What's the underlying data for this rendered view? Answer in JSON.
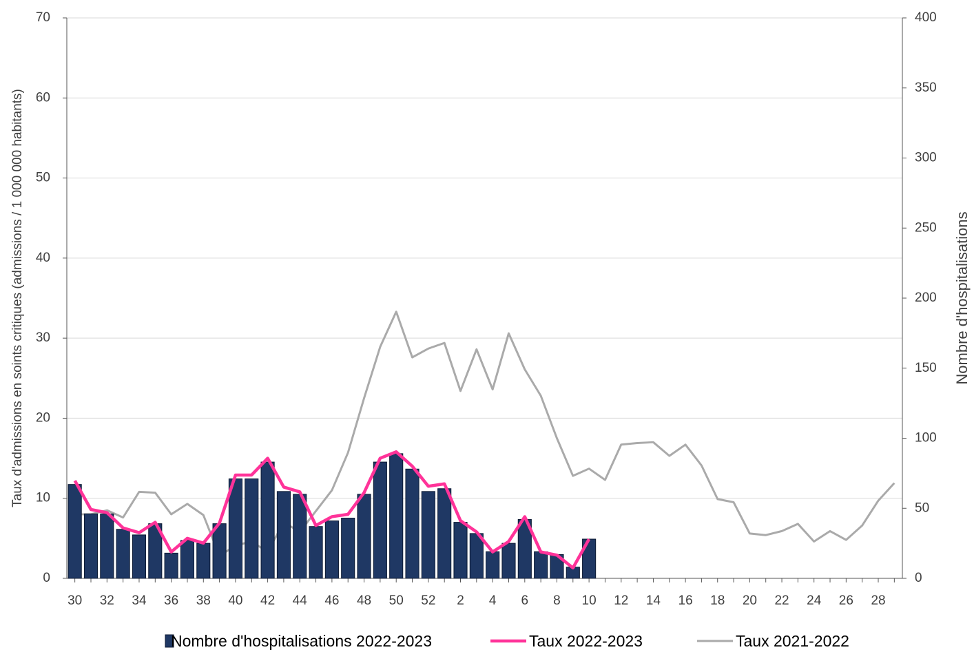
{
  "chart_data": {
    "type": "bar",
    "y_label": "Taux d'admissions  en soints  critiques  (admissions  / 1 000 000 habitants)",
    "y2_label": "Nombre d'hospitalisations",
    "categories": [
      "30",
      null,
      "32",
      null,
      "34",
      null,
      "36",
      null,
      "38",
      null,
      "40",
      null,
      "42",
      null,
      "44",
      null,
      "46",
      null,
      "48",
      null,
      "50",
      null,
      "52",
      null,
      "2",
      null,
      "4",
      null,
      "6",
      null,
      "8",
      null,
      "10",
      null,
      "12",
      null,
      "14",
      null,
      "16",
      null,
      "18",
      null,
      "20",
      null,
      "22",
      null,
      "24",
      null,
      "26",
      null,
      "28",
      null
    ],
    "ylim": [
      0,
      70
    ],
    "yticks": [
      0,
      10,
      20,
      30,
      40,
      50,
      60,
      70
    ],
    "y2lim": [
      0,
      400
    ],
    "y2ticks": [
      0,
      50,
      100,
      150,
      200,
      250,
      300,
      350,
      400
    ],
    "grid": true,
    "legend": "bottom",
    "series": [
      {
        "name": "Nombre d'hospitalisations 2022-2023",
        "type": "bar",
        "axis": "y2",
        "color": "#1f3864",
        "values": [
          67,
          46,
          46,
          35,
          31,
          39,
          18,
          27,
          25,
          39,
          71,
          71,
          83,
          62,
          60,
          37,
          41,
          43,
          60,
          83,
          89,
          78,
          62,
          64,
          40,
          32,
          19,
          25,
          42,
          19,
          17,
          8,
          28,
          null,
          null,
          null,
          null,
          null,
          null,
          null,
          null,
          null,
          null,
          null,
          null,
          null,
          null,
          null,
          null,
          null,
          null,
          null
        ]
      },
      {
        "name": "Taux 2022-2023",
        "type": "line",
        "color": "#ff3399",
        "values": [
          12.2,
          8.6,
          8.2,
          6.3,
          5.7,
          7.0,
          3.3,
          5.0,
          4.4,
          6.9,
          12.9,
          12.9,
          15.0,
          11.4,
          10.8,
          6.6,
          7.7,
          8.0,
          10.7,
          15.0,
          15.8,
          14.0,
          11.5,
          11.8,
          7.2,
          5.8,
          3.3,
          4.6,
          7.7,
          3.3,
          2.9,
          1.3,
          4.9,
          null,
          null,
          null,
          null,
          null,
          null,
          null,
          null,
          null,
          null,
          null,
          null,
          null,
          null,
          null,
          null,
          null,
          null,
          null
        ]
      },
      {
        "name": "Taux 2021-2022",
        "type": "line",
        "color": "#aaaaaa",
        "values": [
          8.0,
          8.0,
          8.5,
          7.6,
          10.8,
          10.7,
          8.0,
          9.3,
          7.9,
          2.8,
          4.1,
          4.6,
          3.3,
          7.0,
          5.8,
          8.4,
          11.0,
          15.7,
          22.5,
          28.9,
          33.3,
          27.6,
          28.7,
          29.4,
          23.4,
          28.6,
          23.6,
          30.6,
          26.1,
          22.8,
          17.5,
          12.8,
          13.7,
          12.3,
          16.7,
          16.9,
          17.0,
          15.3,
          16.7,
          14.1,
          9.9,
          9.5,
          5.6,
          5.4,
          5.9,
          6.8,
          4.6,
          5.9,
          4.8,
          6.6,
          9.7,
          11.9
        ]
      }
    ]
  }
}
